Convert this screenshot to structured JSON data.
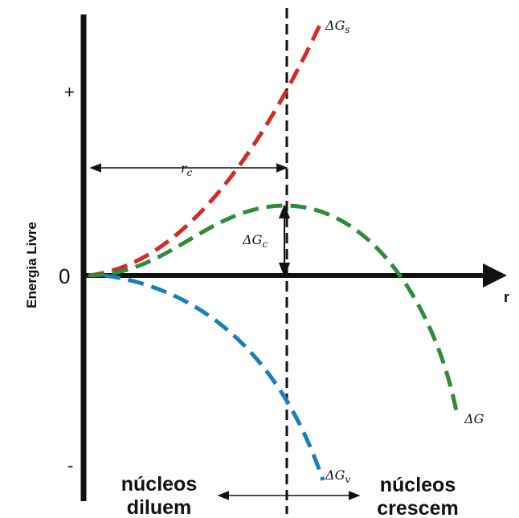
{
  "axes": {
    "y_label": "Energia Livre",
    "x_label": "r",
    "tick_plus": "+",
    "tick_zero": "0",
    "tick_minus": "-"
  },
  "curves": {
    "surface": {
      "label_delta": "Δ",
      "label_main": "G",
      "label_sub": "s",
      "color": "#d42a2a"
    },
    "total": {
      "label_delta": "Δ",
      "label_main": "G",
      "label_sub": "",
      "color": "#2e8b3a"
    },
    "volume": {
      "label_delta": "Δ",
      "label_main": "G",
      "label_sub": "v",
      "color": "#1a7fb8"
    }
  },
  "annotations": {
    "critical_radius": {
      "main": "r",
      "sub": "c"
    },
    "critical_energy": {
      "delta": "Δ",
      "main": "G",
      "sub": "c"
    }
  },
  "regions": {
    "left_line1": "núcleos",
    "left_line2": "diluem",
    "right_line1": "núcleos",
    "right_line2": "crescem"
  }
}
